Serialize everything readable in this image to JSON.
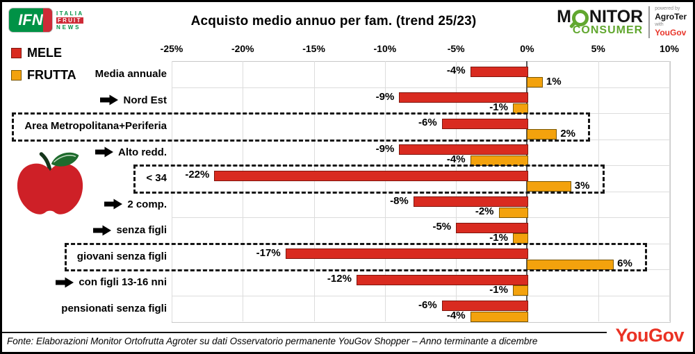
{
  "header": {
    "title": "Acquisto medio annuo per fam. (trend 25/23)",
    "ifn_logo": {
      "mark": "IFN",
      "line1": "ITALIA",
      "line2": "FRUIT",
      "line3": "NEWS"
    },
    "monitor_logo": {
      "top_left": "M",
      "top_right": "NITOR",
      "bottom": "CONSUMER",
      "powered_by": "powered by",
      "agroter": "AgroTer",
      "with": "with",
      "yougov": "YouGov"
    }
  },
  "legend": [
    {
      "label": "MELE",
      "color": "#d92b20"
    },
    {
      "label": "FRUTTA",
      "color": "#f3a20d"
    }
  ],
  "chart_data": {
    "type": "bar",
    "orientation": "horizontal",
    "title": "Acquisto medio annuo per fam. (trend 25/23)",
    "categories": [
      "Media annuale",
      "Nord Est",
      "Area Metropolitana+Periferia",
      "Alto redd.",
      "< 34",
      "2 comp.",
      "senza figli",
      "giovani senza figli",
      "con figli 13-16 nni",
      "pensionati senza figli"
    ],
    "series": [
      {
        "name": "MELE",
        "color": "#d92b20",
        "values": [
          -4,
          -9,
          -6,
          -9,
          -22,
          -8,
          -5,
          -17,
          -12,
          -6
        ]
      },
      {
        "name": "FRUTTA",
        "color": "#f3a20d",
        "values": [
          1,
          -1,
          2,
          -4,
          3,
          -2,
          -1,
          6,
          -1,
          -4
        ]
      }
    ],
    "x_ticks": [
      "-25%",
      "-20%",
      "-15%",
      "-10%",
      "-5%",
      "0%",
      "5%",
      "10%"
    ],
    "xlim": [
      -25,
      10
    ],
    "value_suffix": "%",
    "grid": true,
    "legend_position": "top-left",
    "arrow_categories": [
      "Nord Est",
      "Alto redd.",
      "2 comp.",
      "senza figli",
      "con figli 13-16 nni"
    ],
    "highlighted_categories": [
      "Area Metropolitana+Periferia",
      "< 34",
      "giovani senza figli"
    ]
  },
  "footer": {
    "source": "Fonte: Elaborazioni Monitor Ortofrutta Agroter su dati Osservatorio permanente YouGov Shopper – Anno terminante a dicembre",
    "yougov_logo": "YouGov"
  }
}
